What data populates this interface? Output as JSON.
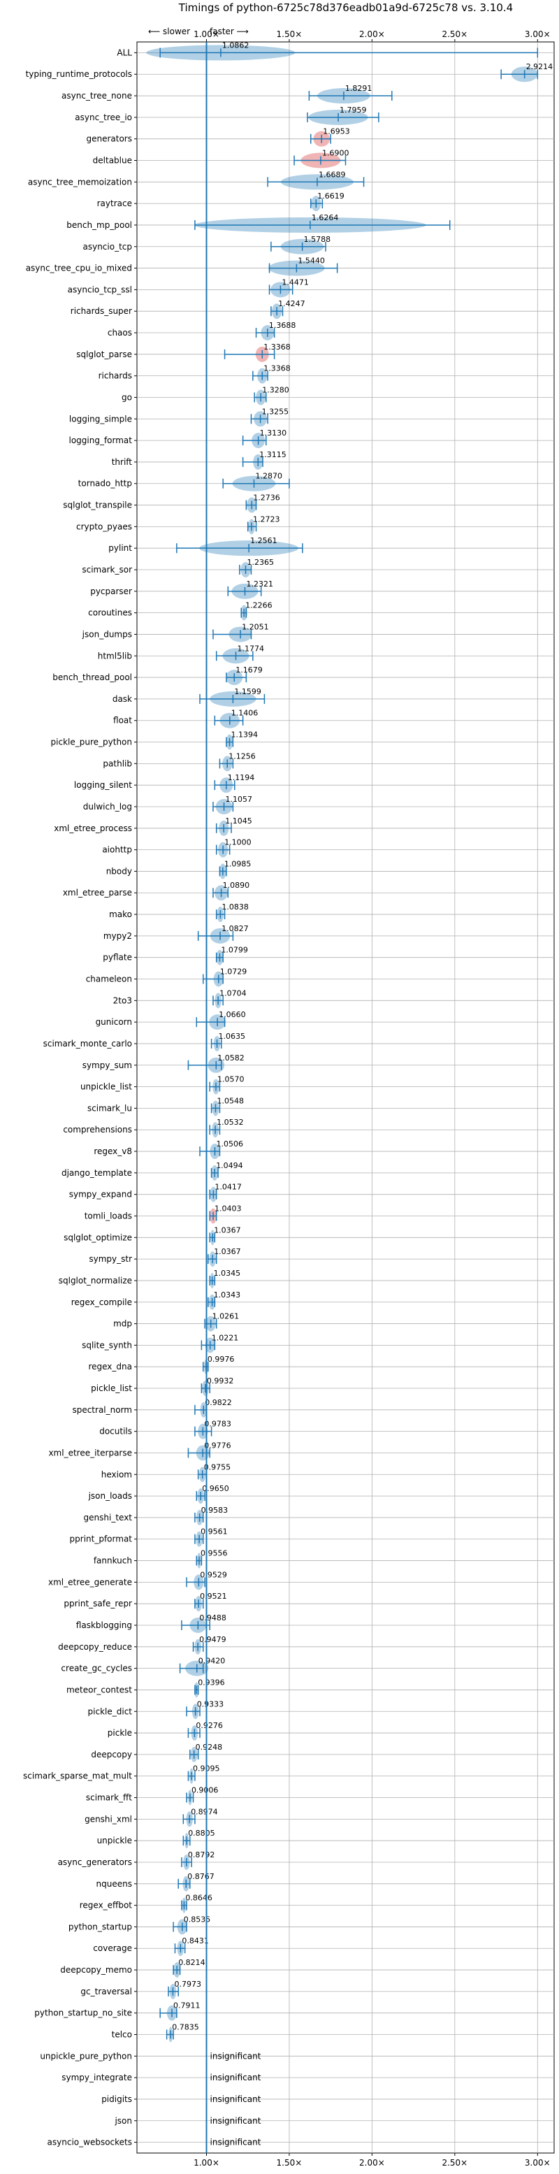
{
  "chart_data": {
    "type": "violin",
    "title": "Timings of python-6725c78d376eadb01a9d-6725c78 vs. 3.10.4",
    "direction_slower": "⟵ slower",
    "direction_faster": "faster ⟶",
    "xlim": [
      0.58,
      3.1
    ],
    "xticks": [
      1.0,
      1.5,
      2.0,
      2.5,
      3.0
    ],
    "xtick_labels": [
      "1.00×",
      "1.50×",
      "2.00×",
      "2.50×",
      "3.00×"
    ],
    "reference_line": 1.0,
    "grid": true,
    "insignificant_label": "insignificant",
    "benchmarks": [
      {
        "name": "ALL",
        "value": 1.0862,
        "label": "1.0862",
        "lo": 0.72,
        "hi": 3.0,
        "spread": 0.45,
        "color": "blue"
      },
      {
        "name": "typing_runtime_protocols",
        "value": 2.9214,
        "label": "2.9214",
        "lo": 2.78,
        "hi": 3.0,
        "spread": 0.08,
        "color": "blue"
      },
      {
        "name": "async_tree_none",
        "value": 1.8291,
        "label": "1.8291",
        "lo": 1.62,
        "hi": 2.12,
        "spread": 0.16,
        "color": "blue"
      },
      {
        "name": "async_tree_io",
        "value": 1.7959,
        "label": "1.7959",
        "lo": 1.61,
        "hi": 2.04,
        "spread": 0.18,
        "color": "blue"
      },
      {
        "name": "generators",
        "value": 1.6953,
        "label": "1.6953",
        "lo": 1.63,
        "hi": 1.75,
        "spread": 0.05,
        "color": "red"
      },
      {
        "name": "deltablue",
        "value": 1.69,
        "label": "1.6900",
        "lo": 1.53,
        "hi": 1.84,
        "spread": 0.12,
        "color": "red"
      },
      {
        "name": "async_tree_memoization",
        "value": 1.6689,
        "label": "1.6689",
        "lo": 1.37,
        "hi": 1.95,
        "spread": 0.22,
        "color": "blue"
      },
      {
        "name": "raytrace",
        "value": 1.6619,
        "label": "1.6619",
        "lo": 1.63,
        "hi": 1.7,
        "spread": 0.03,
        "color": "blue"
      },
      {
        "name": "bench_mp_pool",
        "value": 1.6264,
        "label": "1.6264",
        "lo": 0.93,
        "hi": 2.47,
        "spread": 0.7,
        "color": "blue"
      },
      {
        "name": "asyncio_tcp",
        "value": 1.5788,
        "label": "1.5788",
        "lo": 1.39,
        "hi": 1.72,
        "spread": 0.13,
        "color": "blue"
      },
      {
        "name": "async_tree_cpu_io_mixed",
        "value": 1.544,
        "label": "1.5440",
        "lo": 1.38,
        "hi": 1.79,
        "spread": 0.17,
        "color": "blue"
      },
      {
        "name": "asyncio_tcp_ssl",
        "value": 1.4471,
        "label": "1.4471",
        "lo": 1.38,
        "hi": 1.52,
        "spread": 0.06,
        "color": "blue"
      },
      {
        "name": "richards_super",
        "value": 1.4247,
        "label": "1.4247",
        "lo": 1.39,
        "hi": 1.46,
        "spread": 0.03,
        "color": "blue"
      },
      {
        "name": "chaos",
        "value": 1.3688,
        "label": "1.3688",
        "lo": 1.3,
        "hi": 1.41,
        "spread": 0.04,
        "color": "blue"
      },
      {
        "name": "sqlglot_parse",
        "value": 1.3368,
        "label": "1.3368",
        "lo": 1.11,
        "hi": 1.41,
        "spread": 0.04,
        "color": "red"
      },
      {
        "name": "richards",
        "value": 1.3368,
        "label": "1.3368",
        "lo": 1.28,
        "hi": 1.37,
        "spread": 0.03,
        "color": "blue"
      },
      {
        "name": "go",
        "value": 1.328,
        "label": "1.3280",
        "lo": 1.29,
        "hi": 1.36,
        "spread": 0.03,
        "color": "blue"
      },
      {
        "name": "logging_simple",
        "value": 1.3255,
        "label": "1.3255",
        "lo": 1.27,
        "hi": 1.37,
        "spread": 0.04,
        "color": "blue"
      },
      {
        "name": "logging_format",
        "value": 1.313,
        "label": "1.3130",
        "lo": 1.22,
        "hi": 1.36,
        "spread": 0.04,
        "color": "blue"
      },
      {
        "name": "thrift",
        "value": 1.3115,
        "label": "1.3115",
        "lo": 1.22,
        "hi": 1.34,
        "spread": 0.03,
        "color": "blue"
      },
      {
        "name": "tornado_http",
        "value": 1.287,
        "label": "1.2870",
        "lo": 1.1,
        "hi": 1.5,
        "spread": 0.13,
        "color": "blue"
      },
      {
        "name": "sqlglot_transpile",
        "value": 1.2736,
        "label": "1.2736",
        "lo": 1.24,
        "hi": 1.3,
        "spread": 0.03,
        "color": "blue"
      },
      {
        "name": "crypto_pyaes",
        "value": 1.2723,
        "label": "1.2723",
        "lo": 1.25,
        "hi": 1.3,
        "spread": 0.02,
        "color": "blue"
      },
      {
        "name": "pylint",
        "value": 1.2561,
        "label": "1.2561",
        "lo": 0.82,
        "hi": 1.58,
        "spread": 0.3,
        "color": "blue"
      },
      {
        "name": "scimark_sor",
        "value": 1.2365,
        "label": "1.2365",
        "lo": 1.2,
        "hi": 1.27,
        "spread": 0.03,
        "color": "blue"
      },
      {
        "name": "pycparser",
        "value": 1.2321,
        "label": "1.2321",
        "lo": 1.13,
        "hi": 1.33,
        "spread": 0.08,
        "color": "blue"
      },
      {
        "name": "coroutines",
        "value": 1.2266,
        "label": "1.2266",
        "lo": 1.21,
        "hi": 1.24,
        "spread": 0.02,
        "color": "blue"
      },
      {
        "name": "json_dumps",
        "value": 1.2051,
        "label": "1.2051",
        "lo": 1.04,
        "hi": 1.27,
        "spread": 0.07,
        "color": "blue"
      },
      {
        "name": "html5lib",
        "value": 1.1774,
        "label": "1.1774",
        "lo": 1.06,
        "hi": 1.28,
        "spread": 0.08,
        "color": "blue"
      },
      {
        "name": "bench_thread_pool",
        "value": 1.1679,
        "label": "1.1679",
        "lo": 1.12,
        "hi": 1.24,
        "spread": 0.05,
        "color": "blue"
      },
      {
        "name": "dask",
        "value": 1.1599,
        "label": "1.1599",
        "lo": 0.96,
        "hi": 1.35,
        "spread": 0.14,
        "color": "blue"
      },
      {
        "name": "float",
        "value": 1.1406,
        "label": "1.1406",
        "lo": 1.05,
        "hi": 1.22,
        "spread": 0.06,
        "color": "blue"
      },
      {
        "name": "pickle_pure_python",
        "value": 1.1394,
        "label": "1.1394",
        "lo": 1.12,
        "hi": 1.16,
        "spread": 0.02,
        "color": "blue"
      },
      {
        "name": "pathlib",
        "value": 1.1256,
        "label": "1.1256",
        "lo": 1.08,
        "hi": 1.16,
        "spread": 0.03,
        "color": "blue"
      },
      {
        "name": "logging_silent",
        "value": 1.1194,
        "label": "1.1194",
        "lo": 1.05,
        "hi": 1.17,
        "spread": 0.04,
        "color": "blue"
      },
      {
        "name": "dulwich_log",
        "value": 1.1057,
        "label": "1.1057",
        "lo": 1.04,
        "hi": 1.16,
        "spread": 0.05,
        "color": "blue"
      },
      {
        "name": "xml_etree_process",
        "value": 1.1045,
        "label": "1.1045",
        "lo": 1.06,
        "hi": 1.15,
        "spread": 0.03,
        "color": "blue"
      },
      {
        "name": "aiohttp",
        "value": 1.1,
        "label": "1.1000",
        "lo": 1.06,
        "hi": 1.14,
        "spread": 0.03,
        "color": "blue"
      },
      {
        "name": "nbody",
        "value": 1.0985,
        "label": "1.0985",
        "lo": 1.08,
        "hi": 1.12,
        "spread": 0.02,
        "color": "blue"
      },
      {
        "name": "xml_etree_parse",
        "value": 1.089,
        "label": "1.0890",
        "lo": 1.04,
        "hi": 1.13,
        "spread": 0.04,
        "color": "blue"
      },
      {
        "name": "mako",
        "value": 1.0838,
        "label": "1.0838",
        "lo": 1.06,
        "hi": 1.11,
        "spread": 0.02,
        "color": "blue"
      },
      {
        "name": "mypy2",
        "value": 1.0827,
        "label": "1.0827",
        "lo": 0.95,
        "hi": 1.16,
        "spread": 0.06,
        "color": "blue"
      },
      {
        "name": "pyflate",
        "value": 1.0799,
        "label": "1.0799",
        "lo": 1.06,
        "hi": 1.1,
        "spread": 0.02,
        "color": "blue"
      },
      {
        "name": "chameleon",
        "value": 1.0729,
        "label": "1.0729",
        "lo": 0.98,
        "hi": 1.1,
        "spread": 0.03,
        "color": "blue"
      },
      {
        "name": "2to3",
        "value": 1.0704,
        "label": "1.0704",
        "lo": 1.04,
        "hi": 1.1,
        "spread": 0.02,
        "color": "blue"
      },
      {
        "name": "gunicorn",
        "value": 1.066,
        "label": "1.0660",
        "lo": 0.94,
        "hi": 1.11,
        "spread": 0.05,
        "color": "blue"
      },
      {
        "name": "scimark_monte_carlo",
        "value": 1.0635,
        "label": "1.0635",
        "lo": 1.03,
        "hi": 1.09,
        "spread": 0.02,
        "color": "blue"
      },
      {
        "name": "sympy_sum",
        "value": 1.0582,
        "label": "1.0582",
        "lo": 0.89,
        "hi": 1.09,
        "spread": 0.05,
        "color": "blue"
      },
      {
        "name": "unpickle_list",
        "value": 1.057,
        "label": "1.0570",
        "lo": 1.02,
        "hi": 1.08,
        "spread": 0.02,
        "color": "blue"
      },
      {
        "name": "scimark_lu",
        "value": 1.0548,
        "label": "1.0548",
        "lo": 1.03,
        "hi": 1.08,
        "spread": 0.02,
        "color": "blue"
      },
      {
        "name": "comprehensions",
        "value": 1.0532,
        "label": "1.0532",
        "lo": 1.02,
        "hi": 1.08,
        "spread": 0.02,
        "color": "blue"
      },
      {
        "name": "regex_v8",
        "value": 1.0506,
        "label": "1.0506",
        "lo": 0.96,
        "hi": 1.08,
        "spread": 0.03,
        "color": "blue"
      },
      {
        "name": "django_template",
        "value": 1.0494,
        "label": "1.0494",
        "lo": 1.03,
        "hi": 1.07,
        "spread": 0.02,
        "color": "blue"
      },
      {
        "name": "sympy_expand",
        "value": 1.0417,
        "label": "1.0417",
        "lo": 1.02,
        "hi": 1.06,
        "spread": 0.02,
        "color": "blue"
      },
      {
        "name": "tomli_loads",
        "value": 1.0403,
        "label": "1.0403",
        "lo": 1.02,
        "hi": 1.06,
        "spread": 0.02,
        "color": "red"
      },
      {
        "name": "sqlglot_optimize",
        "value": 1.0367,
        "label": "1.0367",
        "lo": 1.02,
        "hi": 1.05,
        "spread": 0.01,
        "color": "blue"
      },
      {
        "name": "sympy_str",
        "value": 1.0367,
        "label": "1.0367",
        "lo": 1.01,
        "hi": 1.06,
        "spread": 0.02,
        "color": "blue"
      },
      {
        "name": "sqlglot_normalize",
        "value": 1.0345,
        "label": "1.0345",
        "lo": 1.02,
        "hi": 1.05,
        "spread": 0.01,
        "color": "blue"
      },
      {
        "name": "regex_compile",
        "value": 1.0343,
        "label": "1.0343",
        "lo": 1.01,
        "hi": 1.05,
        "spread": 0.02,
        "color": "blue"
      },
      {
        "name": "mdp",
        "value": 1.0261,
        "label": "1.0261",
        "lo": 0.99,
        "hi": 1.06,
        "spread": 0.03,
        "color": "blue"
      },
      {
        "name": "sqlite_synth",
        "value": 1.0221,
        "label": "1.0221",
        "lo": 0.97,
        "hi": 1.05,
        "spread": 0.03,
        "color": "blue"
      },
      {
        "name": "regex_dna",
        "value": 0.9976,
        "label": "0.9976",
        "lo": 0.98,
        "hi": 1.01,
        "spread": 0.01,
        "color": "blue"
      },
      {
        "name": "pickle_list",
        "value": 0.9932,
        "label": "0.9932",
        "lo": 0.97,
        "hi": 1.02,
        "spread": 0.02,
        "color": "blue"
      },
      {
        "name": "spectral_norm",
        "value": 0.9822,
        "label": "0.9822",
        "lo": 0.93,
        "hi": 1.0,
        "spread": 0.02,
        "color": "blue"
      },
      {
        "name": "docutils",
        "value": 0.9783,
        "label": "0.9783",
        "lo": 0.93,
        "hi": 1.03,
        "spread": 0.03,
        "color": "blue"
      },
      {
        "name": "xml_etree_iterparse",
        "value": 0.9776,
        "label": "0.9776",
        "lo": 0.89,
        "hi": 1.02,
        "spread": 0.04,
        "color": "blue"
      },
      {
        "name": "hexiom",
        "value": 0.9755,
        "label": "0.9755",
        "lo": 0.95,
        "hi": 1.0,
        "spread": 0.02,
        "color": "blue"
      },
      {
        "name": "json_loads",
        "value": 0.965,
        "label": "0.9650",
        "lo": 0.94,
        "hi": 0.99,
        "spread": 0.02,
        "color": "blue"
      },
      {
        "name": "genshi_text",
        "value": 0.9583,
        "label": "0.9583",
        "lo": 0.93,
        "hi": 0.98,
        "spread": 0.02,
        "color": "blue"
      },
      {
        "name": "pprint_pformat",
        "value": 0.9561,
        "label": "0.9561",
        "lo": 0.93,
        "hi": 0.98,
        "spread": 0.02,
        "color": "blue"
      },
      {
        "name": "fannkuch",
        "value": 0.9556,
        "label": "0.9556",
        "lo": 0.94,
        "hi": 0.97,
        "spread": 0.01,
        "color": "blue"
      },
      {
        "name": "xml_etree_generate",
        "value": 0.9529,
        "label": "0.9529",
        "lo": 0.88,
        "hi": 0.99,
        "spread": 0.03,
        "color": "blue"
      },
      {
        "name": "pprint_safe_repr",
        "value": 0.9521,
        "label": "0.9521",
        "lo": 0.93,
        "hi": 0.98,
        "spread": 0.02,
        "color": "blue"
      },
      {
        "name": "flaskblogging",
        "value": 0.9488,
        "label": "0.9488",
        "lo": 0.85,
        "hi": 1.02,
        "spread": 0.05,
        "color": "blue"
      },
      {
        "name": "deepcopy_reduce",
        "value": 0.9479,
        "label": "0.9479",
        "lo": 0.92,
        "hi": 0.98,
        "spread": 0.02,
        "color": "blue"
      },
      {
        "name": "create_gc_cycles",
        "value": 0.942,
        "label": "0.9420",
        "lo": 0.84,
        "hi": 0.98,
        "spread": 0.07,
        "color": "blue"
      },
      {
        "name": "meteor_contest",
        "value": 0.9396,
        "label": "0.9396",
        "lo": 0.93,
        "hi": 0.95,
        "spread": 0.01,
        "color": "blue"
      },
      {
        "name": "pickle_dict",
        "value": 0.9333,
        "label": "0.9333",
        "lo": 0.88,
        "hi": 0.96,
        "spread": 0.02,
        "color": "blue"
      },
      {
        "name": "pickle",
        "value": 0.9276,
        "label": "0.9276",
        "lo": 0.89,
        "hi": 0.96,
        "spread": 0.02,
        "color": "blue"
      },
      {
        "name": "deepcopy",
        "value": 0.9248,
        "label": "0.9248",
        "lo": 0.9,
        "hi": 0.95,
        "spread": 0.02,
        "color": "blue"
      },
      {
        "name": "scimark_sparse_mat_mult",
        "value": 0.9095,
        "label": "0.9095",
        "lo": 0.89,
        "hi": 0.93,
        "spread": 0.01,
        "color": "blue"
      },
      {
        "name": "scimark_fft",
        "value": 0.9006,
        "label": "0.9006",
        "lo": 0.88,
        "hi": 0.92,
        "spread": 0.01,
        "color": "blue"
      },
      {
        "name": "genshi_xml",
        "value": 0.8974,
        "label": "0.8974",
        "lo": 0.86,
        "hi": 0.93,
        "spread": 0.02,
        "color": "blue"
      },
      {
        "name": "unpickle",
        "value": 0.8805,
        "label": "0.8805",
        "lo": 0.86,
        "hi": 0.9,
        "spread": 0.01,
        "color": "blue"
      },
      {
        "name": "async_generators",
        "value": 0.8792,
        "label": "0.8792",
        "lo": 0.85,
        "hi": 0.91,
        "spread": 0.02,
        "color": "blue"
      },
      {
        "name": "nqueens",
        "value": 0.8767,
        "label": "0.8767",
        "lo": 0.83,
        "hi": 0.9,
        "spread": 0.02,
        "color": "blue"
      },
      {
        "name": "regex_effbot",
        "value": 0.8646,
        "label": "0.8646",
        "lo": 0.85,
        "hi": 0.88,
        "spread": 0.01,
        "color": "blue"
      },
      {
        "name": "python_startup",
        "value": 0.8535,
        "label": "0.8535",
        "lo": 0.8,
        "hi": 0.88,
        "spread": 0.03,
        "color": "blue"
      },
      {
        "name": "coverage",
        "value": 0.8431,
        "label": "0.8431",
        "lo": 0.81,
        "hi": 0.87,
        "spread": 0.02,
        "color": "blue"
      },
      {
        "name": "deepcopy_memo",
        "value": 0.8214,
        "label": "0.8214",
        "lo": 0.8,
        "hi": 0.84,
        "spread": 0.02,
        "color": "blue"
      },
      {
        "name": "gc_traversal",
        "value": 0.7973,
        "label": "0.7973",
        "lo": 0.77,
        "hi": 0.83,
        "spread": 0.02,
        "color": "blue"
      },
      {
        "name": "python_startup_no_site",
        "value": 0.7911,
        "label": "0.7911",
        "lo": 0.72,
        "hi": 0.82,
        "spread": 0.03,
        "color": "blue"
      },
      {
        "name": "telco",
        "value": 0.7835,
        "label": "0.7835",
        "lo": 0.76,
        "hi": 0.8,
        "spread": 0.01,
        "color": "blue"
      },
      {
        "name": "unpickle_pure_python",
        "value": null,
        "label": "insignificant"
      },
      {
        "name": "sympy_integrate",
        "value": null,
        "label": "insignificant"
      },
      {
        "name": "pidigits",
        "value": null,
        "label": "insignificant"
      },
      {
        "name": "json",
        "value": null,
        "label": "insignificant"
      },
      {
        "name": "asyncio_websockets",
        "value": null,
        "label": "insignificant"
      }
    ],
    "colors": {
      "blue": "#1f77b4",
      "red": "#d62728",
      "grid": "#b0b0b0",
      "axis": "#000000",
      "text": "#000000"
    }
  }
}
